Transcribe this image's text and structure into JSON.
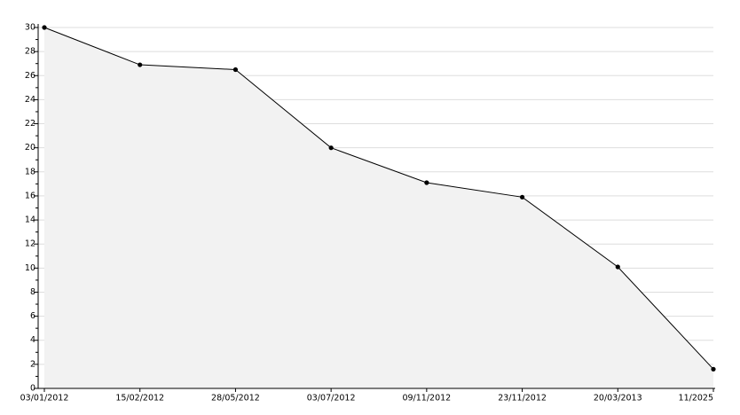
{
  "chart_data": {
    "type": "area-line",
    "categories": [
      "03/01/2012",
      "15/02/2012",
      "28/05/2012",
      "03/07/2012",
      "09/11/2012",
      "23/11/2012",
      "20/03/2013",
      "11/2025"
    ],
    "values": [
      30,
      26.9,
      26.5,
      20,
      17.1,
      15.9,
      10.1,
      1.6
    ],
    "color": "#000000",
    "fill": "#f2f2f2",
    "ylim": [
      0,
      30
    ],
    "yticks": [
      0,
      2,
      4,
      6,
      8,
      10,
      12,
      14,
      16,
      18,
      20,
      22,
      24,
      26,
      28,
      30
    ],
    "minor_yticks": [
      1,
      3,
      5,
      7,
      9,
      11,
      13,
      15,
      17,
      19,
      21,
      23,
      25,
      27,
      29
    ],
    "grid": true
  }
}
